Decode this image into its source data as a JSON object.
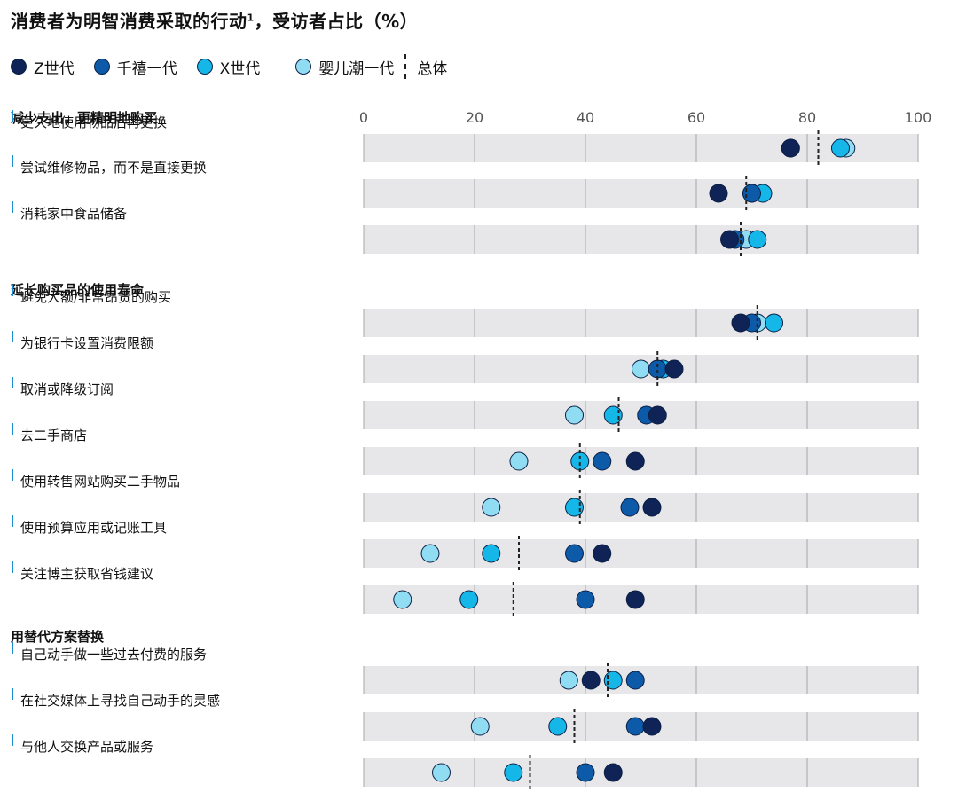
{
  "title": "消费者为明智消费采取的行动",
  "title_footnote": "1",
  "title_suffix": "，受访者占比（%）",
  "legend": [
    {
      "label": "Z世代",
      "color": "#0f2356"
    },
    {
      "label": "千禧一代",
      "color": "#0c5aa8"
    },
    {
      "label": "X世代",
      "color": "#14b7e8"
    },
    {
      "label": "婴儿潮一代",
      "color": "#8fdcf3"
    }
  ],
  "legend_total_label": "总体",
  "chart_data": {
    "type": "scatter",
    "xlim": [
      0,
      100
    ],
    "x_ticks": [
      0,
      20,
      40,
      60,
      80,
      100
    ],
    "grid": true,
    "series_names": [
      "Z世代",
      "千禧一代",
      "X世代",
      "婴儿潮一代"
    ],
    "groups": [
      {
        "name": "减少支出，更精明地购买",
        "items": [
          {
            "label": "更久地使用物品后再更换",
            "values": [
              77,
              77,
              86,
              87
            ],
            "total": 82
          },
          {
            "label": "尝试维修物品，而不是直接更换",
            "values": [
              64,
              70,
              72,
              70
            ],
            "total": 69
          },
          {
            "label": "消耗家中食品储备",
            "values": [
              66,
              67,
              71,
              69
            ],
            "total": 68
          }
        ]
      },
      {
        "name": "延长购买品的使用寿命",
        "items": [
          {
            "label": "避免大额/非常昂贵的购买",
            "values": [
              68,
              70,
              74,
              71
            ],
            "total": 71
          },
          {
            "label": "为银行卡设置消费限额",
            "values": [
              56,
              53,
              54,
              50
            ],
            "total": 53
          },
          {
            "label": "取消或降级订阅",
            "values": [
              53,
              51,
              45,
              38
            ],
            "total": 46
          },
          {
            "label": "去二手商店",
            "values": [
              49,
              43,
              39,
              28
            ],
            "total": 39
          },
          {
            "label": "使用转售网站购买二手物品",
            "values": [
              52,
              48,
              38,
              23
            ],
            "total": 39
          },
          {
            "label": "使用预算应用或记账工具",
            "values": [
              43,
              38,
              23,
              12
            ],
            "total": 28
          },
          {
            "label": "关注博主获取省钱建议",
            "values": [
              49,
              40,
              19,
              7
            ],
            "total": 27
          }
        ]
      },
      {
        "name": "用替代方案替换",
        "items": [
          {
            "label": "自己动手做一些过去付费的服务",
            "values": [
              41,
              49,
              45,
              37
            ],
            "total": 44
          },
          {
            "label": "在社交媒体上寻找自己动手的灵感",
            "values": [
              52,
              49,
              35,
              21
            ],
            "total": 38
          },
          {
            "label": "与他人交换产品或服务",
            "values": [
              45,
              40,
              27,
              14
            ],
            "total": 30
          }
        ]
      }
    ]
  }
}
